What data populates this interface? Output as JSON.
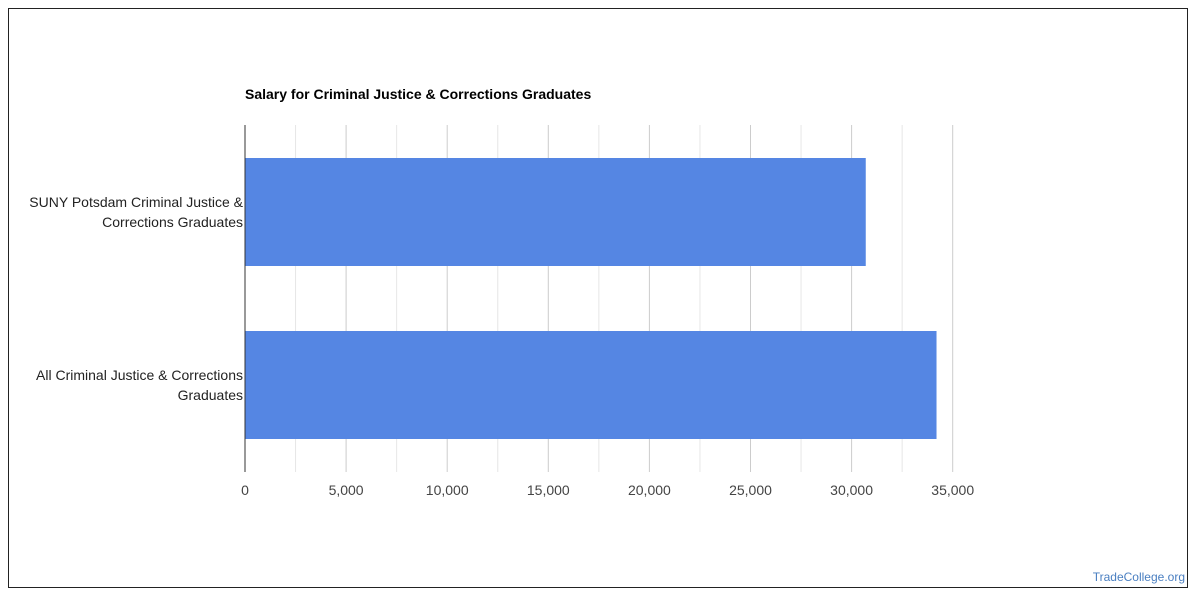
{
  "chart_data": {
    "type": "bar",
    "orientation": "horizontal",
    "title": "Salary for Criminal Justice & Corrections Graduates",
    "categories": [
      "SUNY Potsdam Criminal Justice & Corrections Graduates",
      "All Criminal Justice & Corrections Graduates"
    ],
    "category_label_lines": [
      [
        "SUNY Potsdam Criminal Justice &",
        "Corrections Graduates"
      ],
      [
        "All Criminal Justice & Corrections",
        "Graduates"
      ]
    ],
    "values": [
      30700,
      34200
    ],
    "xlim": [
      0,
      37000
    ],
    "x_ticks": [
      0,
      5000,
      10000,
      15000,
      20000,
      25000,
      30000,
      35000
    ],
    "x_tick_labels": [
      "0",
      "5,000",
      "10,000",
      "15,000",
      "20,000",
      "25,000",
      "30,000",
      "35,000"
    ],
    "grid": true,
    "legend": "none",
    "bar_color": "#5586e3",
    "gridline_color": "#cccccc",
    "minor_gridline_color": "#e6e6e6"
  },
  "watermark": "TradeCollege.org"
}
